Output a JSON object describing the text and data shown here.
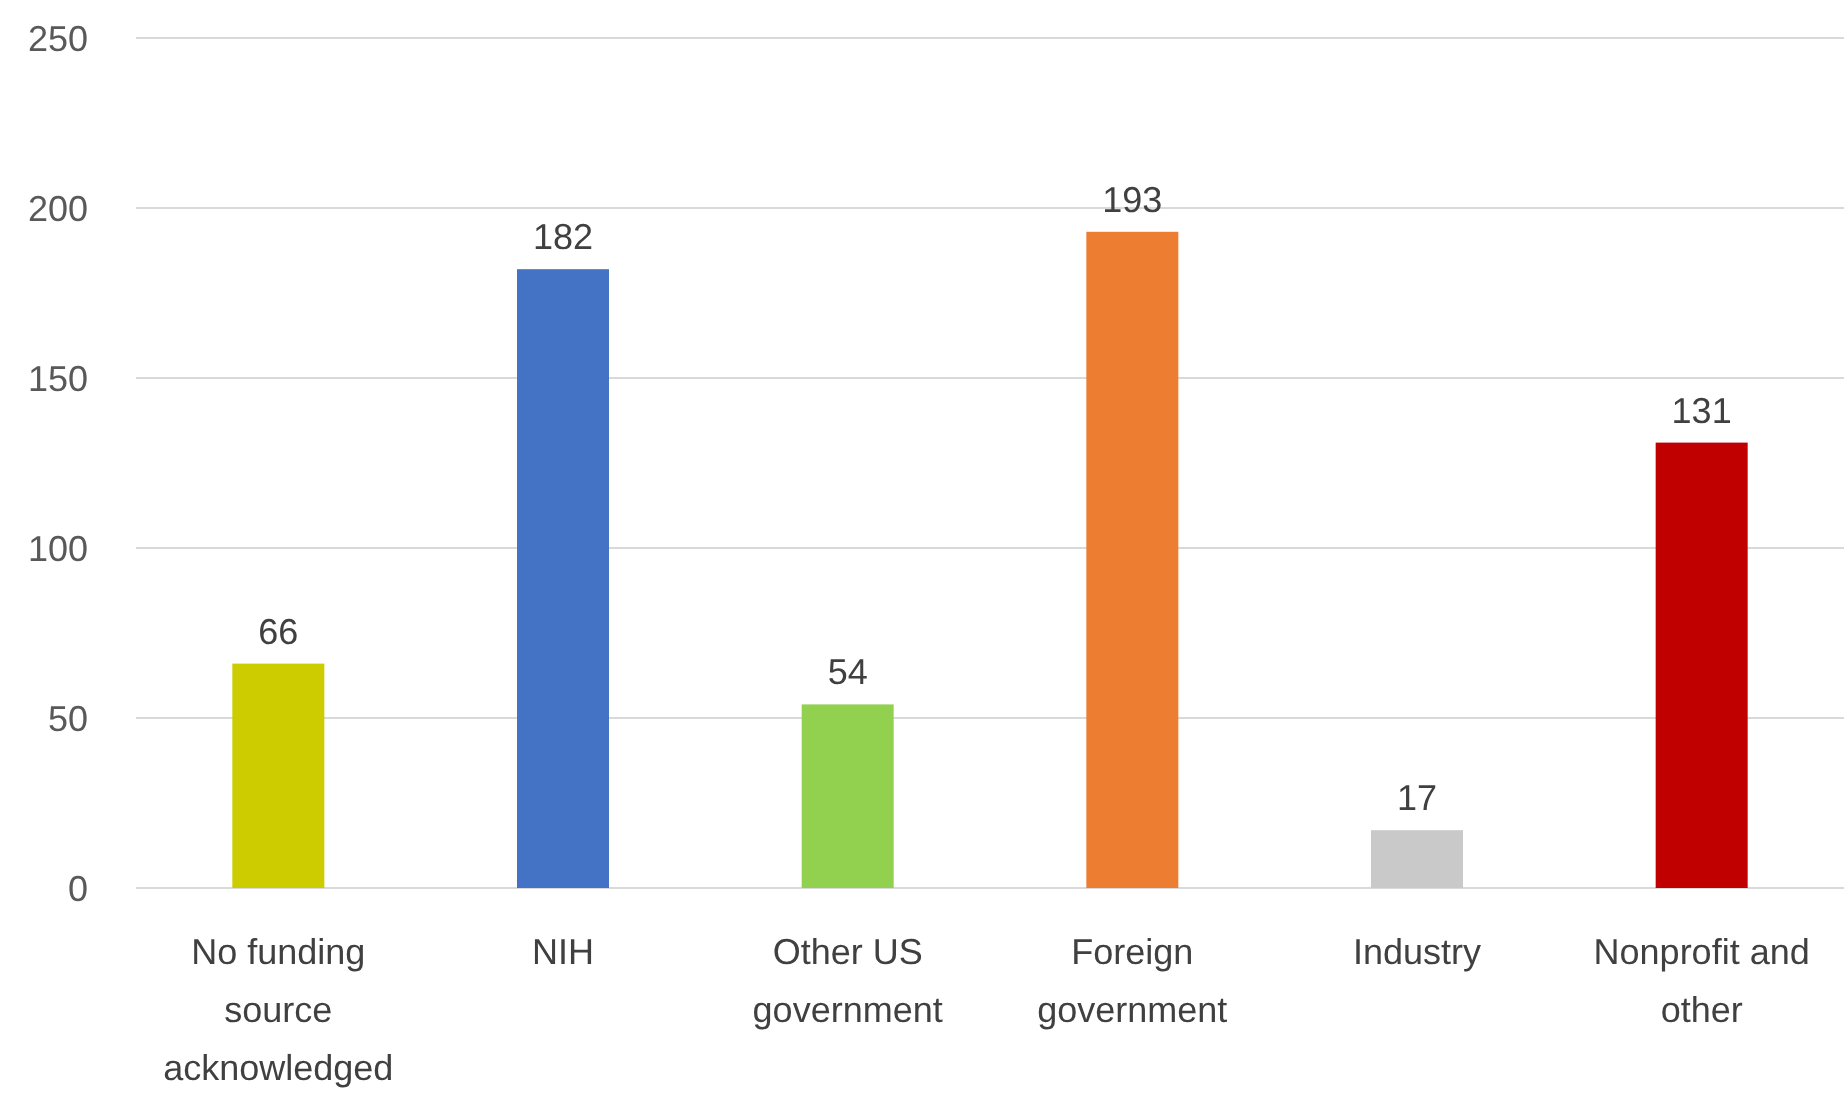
{
  "chart_data": {
    "type": "bar",
    "categories": [
      "No funding source acknowledged",
      "NIH",
      "Other US government",
      "Foreign government",
      "Industry",
      "Nonprofit and other"
    ],
    "values": [
      66,
      182,
      54,
      193,
      17,
      131
    ],
    "colors": [
      "#cccc00",
      "#4472c4",
      "#92d050",
      "#ed7d31",
      "#c9c9c9",
      "#c00000"
    ],
    "ylim": [
      0,
      250
    ],
    "yticks": [
      0,
      50,
      100,
      150,
      200,
      250
    ],
    "grid": "y",
    "data_labels": true
  }
}
